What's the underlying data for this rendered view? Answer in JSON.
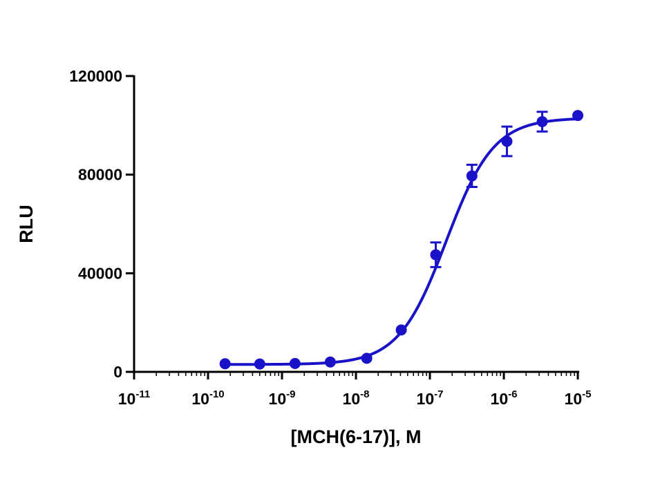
{
  "chart_data": {
    "type": "scatter",
    "title": "",
    "xlabel": "[MCH(6-17)], M",
    "ylabel": "RLU",
    "x_scale": "log10",
    "xlim": [
      1e-11,
      1e-05
    ],
    "ylim": [
      0,
      120000
    ],
    "x_tick_labels": [
      {
        "base": "10",
        "exp": "-11"
      },
      {
        "base": "10",
        "exp": "-10"
      },
      {
        "base": "10",
        "exp": "-9"
      },
      {
        "base": "10",
        "exp": "-8"
      },
      {
        "base": "10",
        "exp": "-7"
      },
      {
        "base": "10",
        "exp": "-6"
      },
      {
        "base": "10",
        "exp": "-5"
      }
    ],
    "y_ticks": [
      0,
      40000,
      80000,
      120000
    ],
    "y_tick_labels": [
      "0",
      "40000",
      "80000",
      "120000"
    ],
    "grid": false,
    "legend": "none",
    "series": [
      {
        "color": "#1a12c8",
        "points": [
          {
            "x": 1.7e-10,
            "y": 3300,
            "err": 300
          },
          {
            "x": 5e-10,
            "y": 3200,
            "err": 300
          },
          {
            "x": 1.5e-09,
            "y": 3400,
            "err": 300
          },
          {
            "x": 4.5e-09,
            "y": 4000,
            "err": 300
          },
          {
            "x": 1.4e-08,
            "y": 5500,
            "err": 500
          },
          {
            "x": 4.1e-08,
            "y": 17000,
            "err": 700
          },
          {
            "x": 1.2e-07,
            "y": 47500,
            "err": 5000
          },
          {
            "x": 3.7e-07,
            "y": 79500,
            "err": 4500
          },
          {
            "x": 1.1e-06,
            "y": 93500,
            "err": 6000
          },
          {
            "x": 3.3e-06,
            "y": 101500,
            "err": 4000
          },
          {
            "x": 1e-05,
            "y": 104000,
            "err": 500
          }
        ],
        "fit": {
          "model": "four-parameter logistic",
          "bottom": 3000,
          "top": 103000,
          "log_ec50": -6.78,
          "hill": 1.35
        }
      }
    ]
  }
}
